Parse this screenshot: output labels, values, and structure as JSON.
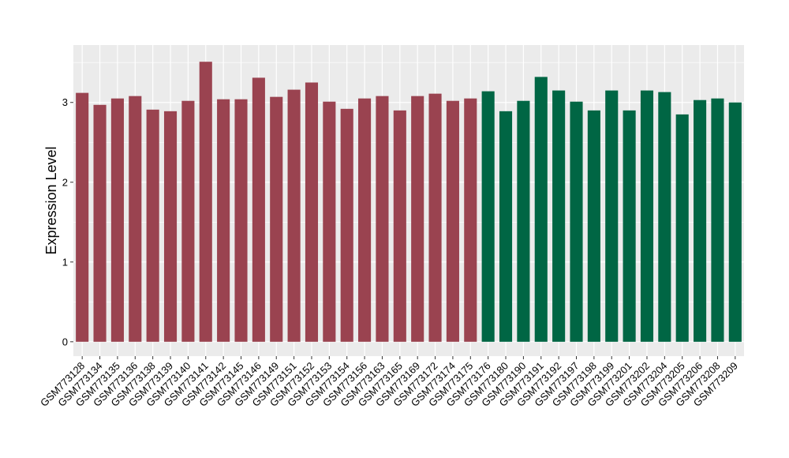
{
  "chart_data": {
    "type": "bar",
    "ylabel": "Expression Level",
    "xlabel": "",
    "ylim": [
      -0.18,
      3.72
    ],
    "yticks": [
      0,
      1,
      2,
      3
    ],
    "grid": true,
    "legend": "none",
    "colors": {
      "group1": "#9a4350",
      "group2": "#006644",
      "panel": "#ebebeb",
      "grid": "#ffffff"
    },
    "categories": [
      "GSM773128",
      "GSM773134",
      "GSM773135",
      "GSM773136",
      "GSM773138",
      "GSM773139",
      "GSM773140",
      "GSM773141",
      "GSM773142",
      "GSM773145",
      "GSM773146",
      "GSM773149",
      "GSM773151",
      "GSM773152",
      "GSM773153",
      "GSM773154",
      "GSM773156",
      "GSM773163",
      "GSM773165",
      "GSM773169",
      "GSM773172",
      "GSM773174",
      "GSM773175",
      "GSM773176",
      "GSM773180",
      "GSM773190",
      "GSM773191",
      "GSM773192",
      "GSM773197",
      "GSM773198",
      "GSM773199",
      "GSM773201",
      "GSM773202",
      "GSM773204",
      "GSM773205",
      "GSM773206",
      "GSM773208",
      "GSM773209"
    ],
    "values": [
      3.12,
      2.97,
      3.05,
      3.08,
      2.91,
      2.89,
      3.02,
      3.51,
      3.04,
      3.04,
      3.31,
      3.07,
      3.16,
      3.25,
      3.01,
      2.92,
      3.05,
      3.08,
      2.9,
      3.08,
      3.11,
      3.02,
      3.05,
      3.14,
      2.89,
      3.02,
      3.32,
      3.15,
      3.01,
      2.9,
      3.15,
      2.9,
      3.15,
      3.13,
      2.85,
      3.03,
      3.05,
      3.0
    ],
    "groups": [
      1,
      1,
      1,
      1,
      1,
      1,
      1,
      1,
      1,
      1,
      1,
      1,
      1,
      1,
      1,
      1,
      1,
      1,
      1,
      1,
      1,
      1,
      1,
      2,
      2,
      2,
      2,
      2,
      2,
      2,
      2,
      2,
      2,
      2,
      2,
      2,
      2,
      2
    ]
  }
}
